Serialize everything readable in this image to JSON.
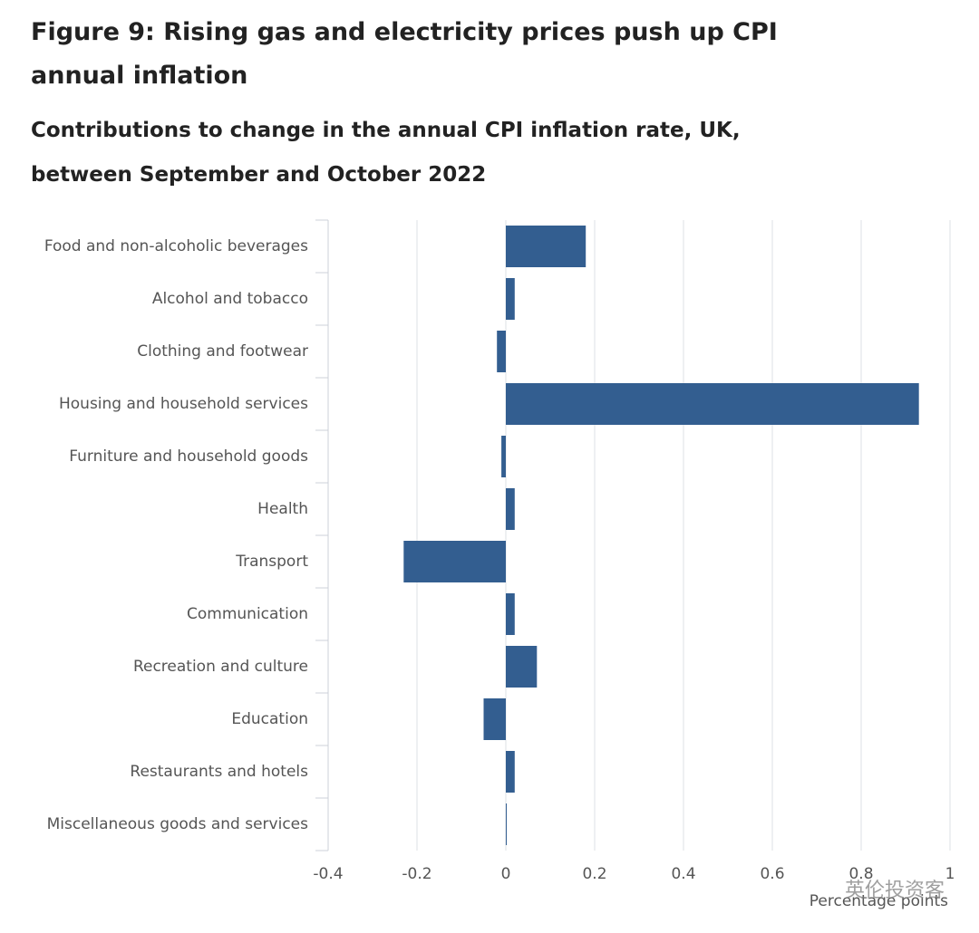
{
  "chart_data": {
    "type": "hbar",
    "title": "Figure 9: Rising gas and electricity prices push up CPI annual inflation",
    "subtitle": "Contributions to change in the annual CPI inflation rate, UK, between September and October 2022",
    "x_label": "Percentage points",
    "watermark": "英伦投资客",
    "categories": [
      "Food and non-alcoholic beverages",
      "Alcohol and tobacco",
      "Clothing and footwear",
      "Housing and household services",
      "Furniture and household goods",
      "Health",
      "Transport",
      "Communication",
      "Recreation and culture",
      "Education",
      "Restaurants and hotels",
      "Miscellaneous goods and services"
    ],
    "values": [
      0.18,
      0.02,
      -0.02,
      0.93,
      -0.01,
      0.02,
      -0.23,
      0.02,
      0.07,
      -0.05,
      0.02,
      0
    ],
    "color": "#335e90",
    "xlim": [
      -0.4,
      1
    ],
    "xticks": [
      -0.4,
      -0.2,
      0,
      0.2,
      0.4,
      0.6,
      0.8,
      1
    ],
    "grid": true
  }
}
